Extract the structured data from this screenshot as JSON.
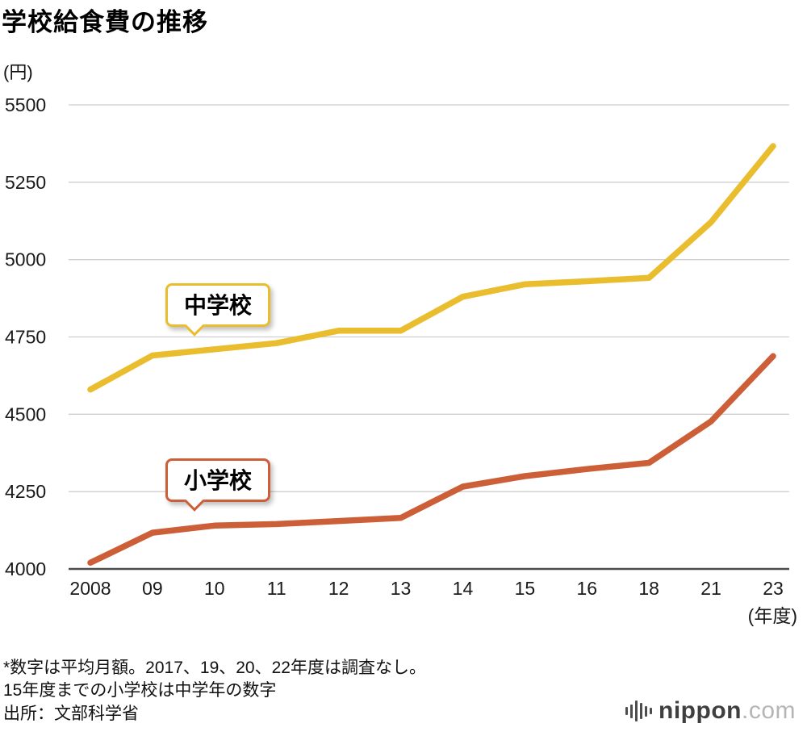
{
  "title": "学校給食費の推移",
  "y_unit": "(円)",
  "x_unit": "(年度)",
  "labels": {
    "junior_high": "中学校",
    "elementary": "小学校"
  },
  "footnotes": {
    "line1": "*数字は平均月額。2017、19、20、22年度は調査なし。",
    "line2": "15年度までの小学校は中学年の数字",
    "line3": "出所：文部科学省"
  },
  "logo": {
    "name": "nippon",
    "tld": ".com"
  },
  "chart_data": {
    "type": "line",
    "categories": [
      "2008",
      "09",
      "10",
      "11",
      "12",
      "13",
      "14",
      "15",
      "16",
      "18",
      "21",
      "23"
    ],
    "series": [
      {
        "name": "中学校",
        "color": "#e9bd2e",
        "values": [
          4580,
          4690,
          4710,
          4730,
          4770,
          4770,
          4880,
          4920,
          4930,
          4941,
          5121,
          5367
        ]
      },
      {
        "name": "小学校",
        "color": "#cc5f38",
        "values": [
          4020,
          4117,
          4140,
          4145,
          4155,
          4165,
          4266,
          4300,
          4323,
          4343,
          4477,
          4688
        ]
      }
    ],
    "ylim": [
      4000,
      5500
    ],
    "yticks": [
      4000,
      4250,
      4500,
      4750,
      5000,
      5250,
      5500
    ],
    "ylabel": "(円)",
    "xlabel": "(年度)",
    "grid": true,
    "legend_position": "inline-bubbles"
  }
}
